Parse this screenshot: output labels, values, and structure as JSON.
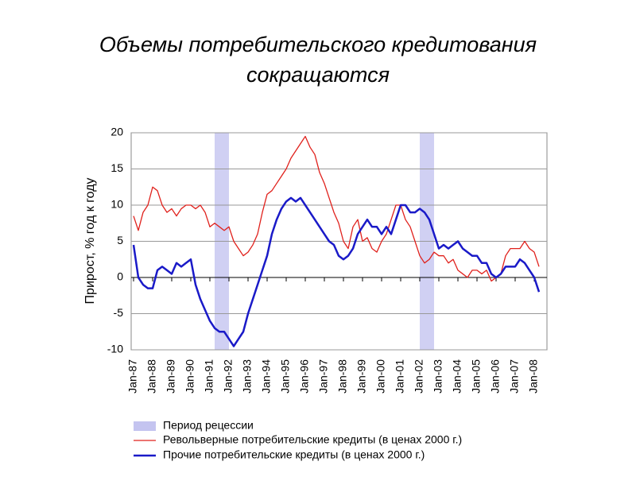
{
  "chart_data": {
    "type": "line",
    "title": "Объемы потребительского кредитования",
    "subtitle": "сокращаются",
    "y_label": "Прирост, % год к году",
    "categories": [
      "Jan-87",
      null,
      null,
      null,
      "Jan-88",
      null,
      null,
      null,
      "Jan-89",
      null,
      null,
      null,
      "Jan-90",
      null,
      null,
      null,
      "Jan-91",
      null,
      null,
      null,
      "Jan-92",
      null,
      null,
      null,
      "Jan-93",
      null,
      null,
      null,
      "Jan-94",
      null,
      null,
      null,
      "Jan-95",
      null,
      null,
      null,
      "Jan-96",
      null,
      null,
      null,
      "Jan-97",
      null,
      null,
      null,
      "Jan-98",
      null,
      null,
      null,
      "Jan-99",
      null,
      null,
      null,
      "Jan-00",
      null,
      null,
      null,
      "Jan-01",
      null,
      null,
      null,
      "Jan-02",
      null,
      null,
      null,
      "Jan-03",
      null,
      null,
      null,
      "Jan-04",
      null,
      null,
      null,
      "Jan-05",
      null,
      null,
      null,
      "Jan-06",
      null,
      null,
      null,
      "Jan-07",
      null,
      null,
      null,
      "Jan-08",
      null
    ],
    "recessions": {
      "name": "Период рецессии",
      "color": "#c4c4f0",
      "spans": [
        [
          17,
          20
        ],
        [
          60,
          63
        ]
      ]
    },
    "series": [
      {
        "name": "Револьверные потребительские кредиты (в ценах 2000 г.)",
        "color": "#e0211c",
        "width": 1.3,
        "values": [
          8.5,
          6.5,
          9,
          10,
          12.5,
          12,
          10,
          9,
          9.5,
          8.5,
          9.5,
          10,
          10,
          9.5,
          10,
          9,
          7,
          7.5,
          7,
          6.5,
          7,
          5,
          4,
          3,
          3.5,
          4.5,
          6,
          9,
          11.5,
          12,
          13,
          14,
          15,
          16.5,
          17.5,
          18.5,
          19.5,
          18,
          17,
          14.5,
          13,
          11,
          9,
          7.5,
          5,
          4,
          7,
          8,
          5,
          5.5,
          4,
          3.5,
          5,
          6,
          8,
          10,
          10,
          8,
          7,
          5,
          3,
          2,
          2.5,
          3.5,
          3,
          3,
          2,
          2.5,
          1,
          0.5,
          0,
          1,
          1,
          0.5,
          1,
          -0.5,
          0,
          0.5,
          3,
          4,
          4,
          4,
          5,
          4,
          3.5,
          1.5
        ]
      },
      {
        "name": "Прочие потребительские кредиты (в ценах 2000 г.)",
        "color": "#1a1ac8",
        "width": 2.5,
        "values": [
          4.5,
          0,
          -1,
          -1.5,
          -1.5,
          1,
          1.5,
          1,
          0.5,
          2,
          1.5,
          2,
          2.5,
          -1,
          -3,
          -4.5,
          -6,
          -7,
          -7.5,
          -7.5,
          -8.5,
          -9.5,
          -8.5,
          -7.5,
          -5,
          -3,
          -1,
          1,
          3,
          6,
          8,
          9.5,
          10.5,
          11,
          10.5,
          11,
          10,
          9,
          8,
          7,
          6,
          5,
          4.5,
          3,
          2.5,
          3,
          4,
          6,
          7,
          8,
          7,
          7,
          6,
          7,
          6,
          8,
          10,
          10,
          9,
          9,
          9.5,
          9,
          8,
          6,
          4,
          4.5,
          4,
          4.5,
          5,
          4,
          3.5,
          3,
          3,
          2,
          2,
          0.5,
          0,
          0.5,
          1.5,
          1.5,
          1.5,
          2.5,
          2,
          1,
          0,
          -2
        ]
      }
    ],
    "ylim": [
      -10,
      20
    ],
    "yticks": [
      -10,
      -5,
      0,
      5,
      10,
      15,
      20
    ],
    "grid": true
  }
}
